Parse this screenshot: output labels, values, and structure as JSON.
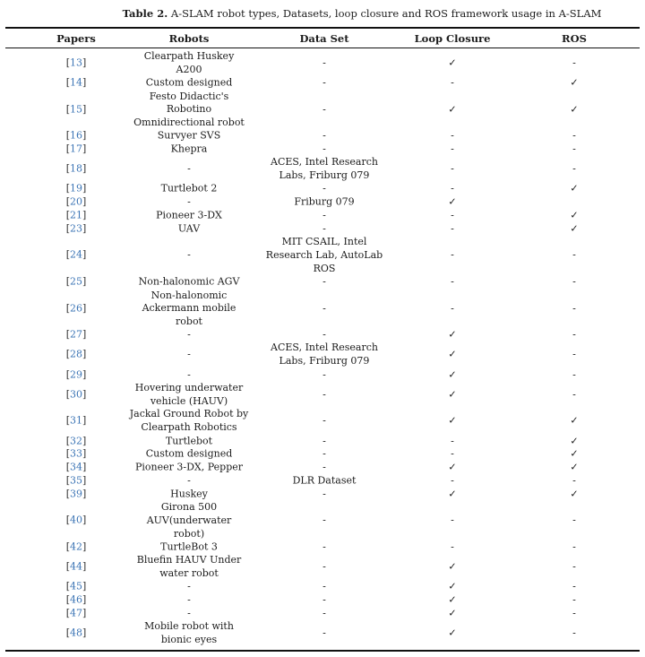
{
  "caption": {
    "label": "Table 2.",
    "text": "A-SLAM robot types, Datasets, loop closure and ROS framework usage in A-SLAM"
  },
  "table": {
    "columns": [
      "Papers",
      "Robots",
      "Data Set",
      "Loop Closure",
      "ROS"
    ],
    "symbols": {
      "check": "✓",
      "dash": "-"
    },
    "colors": {
      "citation_number": "#3b74b5",
      "text": "#1c1c1c",
      "rule": "#111111"
    },
    "rows": [
      {
        "paper": "13",
        "robots": [
          "Clearpath Huskey",
          "A200"
        ],
        "dataset": [
          "-"
        ],
        "loop_closure": "✓",
        "ros": "-"
      },
      {
        "paper": "14",
        "robots": [
          "Custom designed"
        ],
        "dataset": [
          "-"
        ],
        "loop_closure": "-",
        "ros": "✓"
      },
      {
        "paper": "15",
        "robots": [
          "Festo Didactic's",
          "Robotino",
          "Omnidirectional robot"
        ],
        "dataset": [
          "-"
        ],
        "loop_closure": "✓",
        "ros": "✓"
      },
      {
        "paper": "16",
        "robots": [
          "Survyer SVS"
        ],
        "dataset": [
          "-"
        ],
        "loop_closure": "-",
        "ros": "-"
      },
      {
        "paper": "17",
        "robots": [
          "Khepra"
        ],
        "dataset": [
          "-"
        ],
        "loop_closure": "-",
        "ros": "-"
      },
      {
        "paper": "18",
        "robots": [
          "-"
        ],
        "dataset": [
          "ACES, Intel Research",
          "Labs, Friburg 079"
        ],
        "loop_closure": "-",
        "ros": "-"
      },
      {
        "paper": "19",
        "robots": [
          "Turtlebot 2"
        ],
        "dataset": [
          "-"
        ],
        "loop_closure": "-",
        "ros": "✓"
      },
      {
        "paper": "20",
        "robots": [
          "-"
        ],
        "dataset": [
          "Friburg 079"
        ],
        "loop_closure": "✓",
        "ros": ""
      },
      {
        "paper": "21",
        "robots": [
          "Pioneer 3-DX"
        ],
        "dataset": [
          "-"
        ],
        "loop_closure": "-",
        "ros": "✓"
      },
      {
        "paper": "23",
        "robots": [
          "UAV"
        ],
        "dataset": [
          "-"
        ],
        "loop_closure": "-",
        "ros": "✓"
      },
      {
        "paper": "24",
        "robots": [
          "-"
        ],
        "dataset": [
          "MIT CSAIL, Intel",
          "Research Lab, AutoLab",
          "ROS"
        ],
        "loop_closure": "-",
        "ros": "-"
      },
      {
        "paper": "25",
        "robots": [
          "Non-halonomic AGV"
        ],
        "dataset": [
          "-"
        ],
        "loop_closure": "-",
        "ros": "-"
      },
      {
        "paper": "26",
        "robots": [
          "Non-halonomic",
          "Ackermann mobile",
          "robot"
        ],
        "dataset": [
          "-"
        ],
        "loop_closure": "-",
        "ros": "-"
      },
      {
        "paper": "27",
        "robots": [
          "-"
        ],
        "dataset": [
          "-"
        ],
        "loop_closure": "✓",
        "ros": "-"
      },
      {
        "paper": "28",
        "robots": [
          "-"
        ],
        "dataset": [
          "ACES, Intel Research",
          "Labs, Friburg 079"
        ],
        "loop_closure": "✓",
        "ros": "-"
      },
      {
        "paper": "29",
        "robots": [
          "-"
        ],
        "dataset": [
          "-"
        ],
        "loop_closure": "✓",
        "ros": "-"
      },
      {
        "paper": "30",
        "robots": [
          "Hovering underwater",
          "vehicle (HAUV)"
        ],
        "dataset": [
          "-"
        ],
        "loop_closure": "✓",
        "ros": "-"
      },
      {
        "paper": "31",
        "robots": [
          "Jackal Ground Robot by",
          "Clearpath Robotics"
        ],
        "dataset": [
          "-"
        ],
        "loop_closure": "✓",
        "ros": "✓"
      },
      {
        "paper": "32",
        "robots": [
          "Turtlebot"
        ],
        "dataset": [
          "-"
        ],
        "loop_closure": "-",
        "ros": "✓"
      },
      {
        "paper": "33",
        "robots": [
          "Custom designed"
        ],
        "dataset": [
          "-"
        ],
        "loop_closure": "-",
        "ros": "✓"
      },
      {
        "paper": "34",
        "robots": [
          "Pioneer 3-DX, Pepper"
        ],
        "dataset": [
          "-"
        ],
        "loop_closure": "✓",
        "ros": "✓"
      },
      {
        "paper": "35",
        "robots": [
          "-"
        ],
        "dataset": [
          "DLR Dataset"
        ],
        "loop_closure": "-",
        "ros": "-"
      },
      {
        "paper": "39",
        "robots": [
          "Huskey"
        ],
        "dataset": [
          "-"
        ],
        "loop_closure": "✓",
        "ros": "✓"
      },
      {
        "paper": "40",
        "robots": [
          "Girona 500",
          "AUV(underwater",
          "robot)"
        ],
        "dataset": [
          "-"
        ],
        "loop_closure": "-",
        "ros": "-"
      },
      {
        "paper": "42",
        "robots": [
          "TurtleBot 3"
        ],
        "dataset": [
          "-"
        ],
        "loop_closure": "-",
        "ros": "-"
      },
      {
        "paper": "44",
        "robots": [
          "Bluefin HAUV Under",
          "water robot"
        ],
        "dataset": [
          "-"
        ],
        "loop_closure": "✓",
        "ros": "-"
      },
      {
        "paper": "45",
        "robots": [
          "-"
        ],
        "dataset": [
          "-"
        ],
        "loop_closure": "✓",
        "ros": "-"
      },
      {
        "paper": "46",
        "robots": [
          "-"
        ],
        "dataset": [
          "-"
        ],
        "loop_closure": "✓",
        "ros": "-"
      },
      {
        "paper": "47",
        "robots": [
          "-"
        ],
        "dataset": [
          "-"
        ],
        "loop_closure": "✓",
        "ros": "-"
      },
      {
        "paper": "48",
        "robots": [
          "Mobile robot with",
          "bionic eyes"
        ],
        "dataset": [
          "-"
        ],
        "loop_closure": "✓",
        "ros": "-"
      }
    ]
  }
}
